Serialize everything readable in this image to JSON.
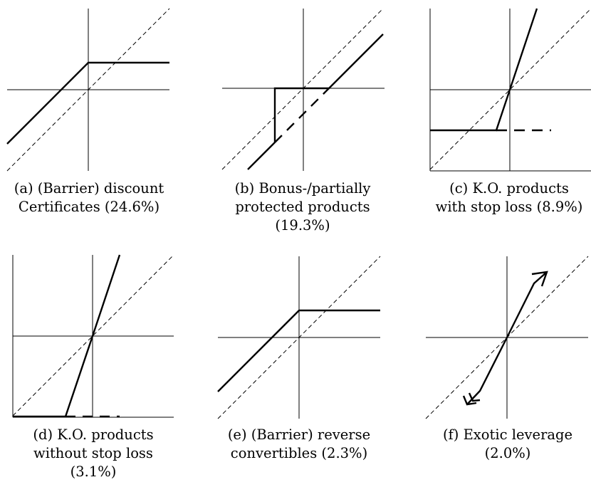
{
  "panels": [
    {
      "id": "a",
      "caption_lines": [
        "(a) (Barrier) discount",
        "Certificates (24.6%)"
      ]
    },
    {
      "id": "b",
      "caption_lines": [
        "(b) Bonus-/partially",
        "protected products",
        "(19.3%)"
      ]
    },
    {
      "id": "c",
      "caption_lines": [
        "(c) K.O. products",
        "with stop loss (8.9%)"
      ]
    },
    {
      "id": "d",
      "caption_lines": [
        "(d) K.O. products",
        "without stop loss",
        "(3.1%)"
      ]
    },
    {
      "id": "e",
      "caption_lines": [
        "(e) (Barrier) reverse",
        "convertibles (2.3%)"
      ]
    },
    {
      "id": "f",
      "caption_lines": [
        "(f) Exotic leverage",
        "(2.0%)"
      ]
    }
  ]
}
